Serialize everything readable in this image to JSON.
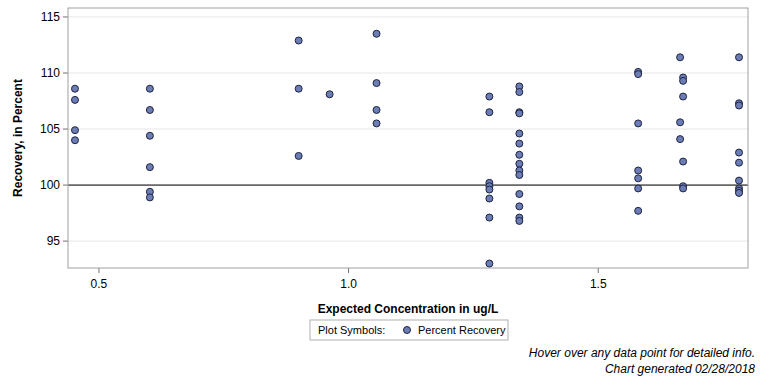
{
  "chart_data": {
    "type": "scatter",
    "x_label": "Expected Concentration in ug/L",
    "y_label": "Recovery, in Percent",
    "xlim": [
      0.438,
      1.8
    ],
    "ylim": [
      92.6,
      115.8
    ],
    "xticks": [
      0.5,
      {
        "value": 1,
        "label": "1.0"
      },
      1.5
    ],
    "yticks": [
      95,
      100,
      105,
      110,
      115
    ],
    "grid": true,
    "reference_line": 100,
    "legend": "bottom",
    "legend_title": "Plot Symbols:",
    "notes": [
      "Hover over any data point for detailed info.",
      "Chart generated 02/28/2018"
    ],
    "series": [
      {
        "name": "Percent Recovery",
        "color": "#6c7db5",
        "marker": "circle",
        "x": [
          0.452,
          0.452,
          0.452,
          0.452,
          0.602,
          0.602,
          0.602,
          0.602,
          0.602,
          0.602,
          0.9,
          0.9,
          0.9,
          0.962,
          1.056,
          1.056,
          1.056,
          1.056,
          1.282,
          1.282,
          1.282,
          1.282,
          1.282,
          1.282,
          1.282,
          1.282,
          1.342,
          1.342,
          1.342,
          1.342,
          1.342,
          1.342,
          1.342,
          1.342,
          1.342,
          1.342,
          1.342,
          1.342,
          1.342,
          1.342,
          1.58,
          1.58,
          1.58,
          1.58,
          1.58,
          1.58,
          1.58,
          1.664,
          1.664,
          1.664,
          1.67,
          1.67,
          1.67,
          1.67,
          1.67,
          1.67,
          1.782,
          1.782,
          1.782,
          1.782,
          1.782,
          1.782,
          1.782,
          1.782,
          1.782
        ],
        "values": [
          108.6,
          107.6,
          104.9,
          104.0,
          108.6,
          106.7,
          104.4,
          101.6,
          99.4,
          98.9,
          112.9,
          108.6,
          102.6,
          108.1,
          113.5,
          109.1,
          106.7,
          105.5,
          107.9,
          106.5,
          100.2,
          99.9,
          99.6,
          98.8,
          97.1,
          93.0,
          108.8,
          108.3,
          106.5,
          106.4,
          104.6,
          103.7,
          102.7,
          101.9,
          101.3,
          100.9,
          99.2,
          98.1,
          97.1,
          96.8,
          110.1,
          109.9,
          105.5,
          101.3,
          100.6,
          99.7,
          97.7,
          111.4,
          105.6,
          104.1,
          109.6,
          109.3,
          107.9,
          102.1,
          99.9,
          99.7,
          111.4,
          107.3,
          107.1,
          102.9,
          102.0,
          100.4,
          99.7,
          99.5,
          99.3
        ]
      }
    ]
  }
}
